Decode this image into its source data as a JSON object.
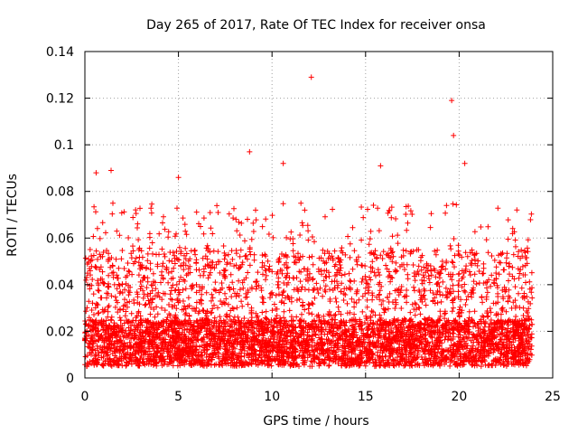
{
  "chart_data": {
    "type": "scatter",
    "title": "Day 265 of 2017, Rate Of TEC Index for receiver onsa",
    "xlabel": "GPS time / hours",
    "ylabel": "ROTI / TECUs",
    "xlim": [
      0,
      25
    ],
    "ylim": [
      0,
      0.14
    ],
    "x_ticks": [
      0,
      5,
      10,
      15,
      20,
      25
    ],
    "y_ticks": [
      0,
      0.02,
      0.04,
      0.06,
      0.08,
      0.1,
      0.12,
      0.14
    ],
    "grid": true,
    "legend": "none",
    "marker": "plus",
    "color": "#ff0000",
    "series": [
      {
        "x_range": [
          0,
          23.9
        ],
        "typical_range": [
          0.005,
          0.055
        ],
        "notable_points": [
          {
            "x": 0.6,
            "y": 0.088
          },
          {
            "x": 1.4,
            "y": 0.089
          },
          {
            "x": 5.0,
            "y": 0.086
          },
          {
            "x": 8.8,
            "y": 0.097
          },
          {
            "x": 10.6,
            "y": 0.092
          },
          {
            "x": 12.1,
            "y": 0.129
          },
          {
            "x": 15.8,
            "y": 0.091
          },
          {
            "x": 19.6,
            "y": 0.119
          },
          {
            "x": 19.7,
            "y": 0.104
          },
          {
            "x": 20.3,
            "y": 0.092
          }
        ]
      }
    ]
  }
}
